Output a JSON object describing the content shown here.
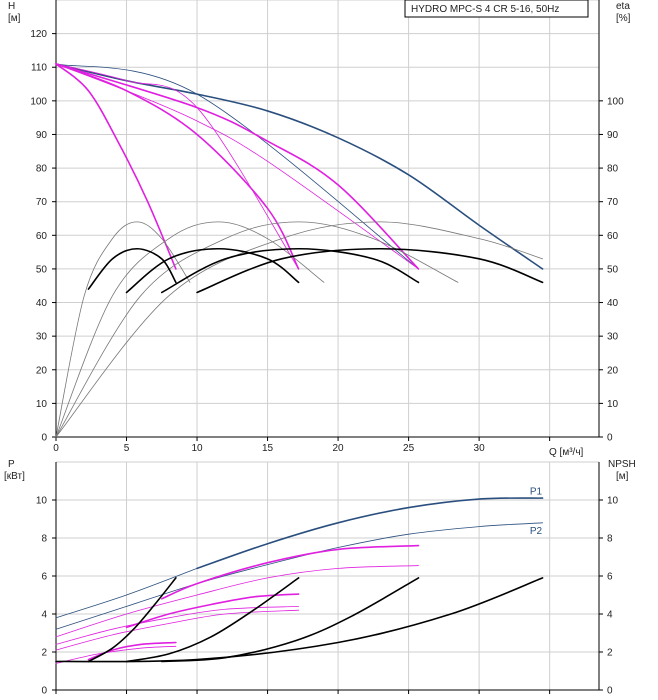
{
  "chart_data": [
    {
      "type": "line",
      "title": "HYDRO MPC-S 4 CR 5-16, 50Hz",
      "ylabel": "H",
      "yunit": "[м]",
      "ylabel_right": "eta",
      "yunit_right": "[%]",
      "xlabel": "Q [м³/ч]",
      "xlim": [
        0,
        38.5
      ],
      "ylim": [
        0,
        130
      ],
      "ylim_right": [
        0,
        130
      ],
      "x_ticks": [
        0,
        5,
        10,
        15,
        20,
        25,
        30
      ],
      "y_ticks": [
        0,
        10,
        20,
        30,
        40,
        50,
        60,
        70,
        80,
        90,
        100,
        110,
        120
      ],
      "y_ticks_right": [
        0,
        10,
        20,
        30,
        40,
        50,
        60,
        70,
        80,
        90,
        100
      ],
      "grid": true,
      "colors": {
        "head_max": "#2a4f7e",
        "head_reduced": "#e020e0",
        "eff": "#000000",
        "eff_thin": "#777777"
      },
      "series": [
        {
          "role": "head-max-4pumps",
          "color": "#2a4f7e",
          "width": 1.6,
          "x": [
            0,
            5,
            10,
            15,
            20,
            25,
            30,
            34.5
          ],
          "y": [
            111,
            106,
            102,
            97,
            89,
            78,
            63,
            50
          ]
        },
        {
          "role": "head-max-thin",
          "color": "#2a4f7e",
          "width": 0.8,
          "x": [
            0,
            10,
            25.7
          ],
          "y": [
            111,
            102,
            50
          ]
        },
        {
          "role": "head-reduced-1",
          "color": "#e020e0",
          "width": 1.6,
          "x": [
            0,
            2.3,
            4.5,
            6.5,
            8.5
          ],
          "y": [
            111,
            103,
            87,
            70,
            50
          ]
        },
        {
          "role": "head-reduced-2",
          "color": "#e020e0",
          "width": 1.6,
          "x": [
            0,
            5,
            10,
            15,
            17.2
          ],
          "y": [
            111,
            103,
            90,
            68,
            50
          ]
        },
        {
          "role": "head-reduced-3",
          "color": "#e020e0",
          "width": 1.6,
          "x": [
            0,
            10,
            15,
            20,
            25.7
          ],
          "y": [
            111,
            98,
            88,
            75,
            50
          ]
        },
        {
          "role": "head-reduced-thin-1",
          "color": "#e020e0",
          "width": 0.8,
          "x": [
            0,
            5,
            10,
            17.2
          ],
          "y": [
            111,
            106,
            98,
            50
          ]
        },
        {
          "role": "head-reduced-thin-2",
          "color": "#e020e0",
          "width": 0.8,
          "x": [
            0,
            5,
            10,
            15,
            25.7
          ],
          "y": [
            111,
            103,
            94,
            82,
            50
          ]
        },
        {
          "role": "eta-1",
          "color": "#777777",
          "width": 0.8,
          "x": [
            0,
            2,
            4,
            5.75,
            7.5,
            9.5
          ],
          "y": [
            0,
            42,
            59,
            64,
            59,
            46
          ]
        },
        {
          "role": "eta-2",
          "color": "#777777",
          "width": 0.8,
          "x": [
            0,
            4,
            8,
            11.5,
            15,
            19
          ],
          "y": [
            0,
            42,
            59,
            64,
            59,
            46
          ]
        },
        {
          "role": "eta-3",
          "color": "#777777",
          "width": 0.8,
          "x": [
            0,
            6,
            12,
            17.2,
            22.5,
            28.5
          ],
          "y": [
            0,
            42,
            59,
            64,
            59,
            46
          ]
        },
        {
          "role": "eta-4",
          "color": "#777777",
          "width": 0.8,
          "x": [
            0,
            8,
            16,
            23,
            30,
            34.5
          ],
          "y": [
            0,
            42,
            59,
            64,
            59,
            53
          ]
        },
        {
          "role": "eta-op-1",
          "color": "#000000",
          "width": 1.6,
          "x": [
            2.3,
            4,
            5.75,
            7.5,
            8.5
          ],
          "y": [
            44,
            53,
            56,
            53,
            46
          ]
        },
        {
          "role": "eta-op-2",
          "color": "#000000",
          "width": 1.6,
          "x": [
            5,
            8,
            11.5,
            15,
            17.2
          ],
          "y": [
            43,
            53,
            56,
            53,
            46
          ]
        },
        {
          "role": "eta-op-3",
          "color": "#000000",
          "width": 1.6,
          "x": [
            7.5,
            12,
            17.2,
            22.5,
            25.7
          ],
          "y": [
            43,
            53,
            56,
            53,
            46
          ]
        },
        {
          "role": "eta-op-4",
          "color": "#000000",
          "width": 1.6,
          "x": [
            10,
            16,
            23,
            30,
            34.5
          ],
          "y": [
            43,
            53,
            56,
            53,
            46
          ]
        }
      ]
    },
    {
      "type": "line",
      "ylabel": "P",
      "yunit": "[кВт]",
      "ylabel_right": "NPSH",
      "yunit_right": "[м]",
      "xlim": [
        0,
        38.5
      ],
      "ylim": [
        0,
        12
      ],
      "ylim_right": [
        0,
        12
      ],
      "x_ticks": [
        0,
        5,
        10,
        15,
        20,
        25,
        30
      ],
      "y_ticks": [
        0,
        2,
        4,
        6,
        8,
        10
      ],
      "y_ticks_right": [
        0,
        2,
        4,
        6,
        8,
        10
      ],
      "grid": true,
      "series_labels": [
        {
          "text": "P1",
          "x": 33.6,
          "y": 10.3,
          "color": "#2a4f7e"
        },
        {
          "text": "P2",
          "x": 33.6,
          "y": 8.2,
          "color": "#2a4f7e"
        }
      ],
      "series": [
        {
          "role": "p1-max",
          "color": "#2a4f7e",
          "width": 1.6,
          "x": [
            10,
            15,
            20,
            25,
            30,
            34.5
          ],
          "y": [
            6.4,
            7.7,
            8.8,
            9.6,
            10.05,
            10.1
          ]
        },
        {
          "role": "p1-max-thin",
          "color": "#2a4f7e",
          "width": 0.8,
          "x": [
            0,
            5,
            10
          ],
          "y": [
            3.8,
            5.0,
            6.4
          ]
        },
        {
          "role": "p2-max",
          "color": "#2a4f7e",
          "width": 0.8,
          "x": [
            0,
            5,
            10,
            15,
            20,
            25,
            30,
            34.5
          ],
          "y": [
            3.2,
            4.4,
            5.6,
            6.6,
            7.5,
            8.2,
            8.6,
            8.8
          ]
        },
        {
          "role": "p1-reduced-3",
          "color": "#e020e0",
          "width": 1.6,
          "x": [
            7.5,
            10,
            15,
            20,
            25.7
          ],
          "y": [
            4.8,
            5.6,
            6.7,
            7.4,
            7.6
          ]
        },
        {
          "role": "p1-reduced-3-thin",
          "color": "#e020e0",
          "width": 0.8,
          "x": [
            0,
            5,
            10,
            15,
            20,
            25.7
          ],
          "y": [
            2.8,
            4.0,
            5.0,
            5.9,
            6.4,
            6.55
          ]
        },
        {
          "role": "p1-reduced-2",
          "color": "#e020e0",
          "width": 1.6,
          "x": [
            5,
            8,
            11,
            14,
            17.2
          ],
          "y": [
            3.3,
            4.0,
            4.5,
            4.9,
            5.05
          ]
        },
        {
          "role": "p1-reduced-2-thin",
          "color": "#e020e0",
          "width": 0.8,
          "x": [
            0,
            4,
            8,
            12,
            17.2
          ],
          "y": [
            2.4,
            3.2,
            3.8,
            4.25,
            4.4
          ]
        },
        {
          "role": "p1-reduced-thin-a",
          "color": "#e020e0",
          "width": 0.8,
          "x": [
            0,
            4,
            8,
            12,
            17.2
          ],
          "y": [
            2.1,
            2.9,
            3.5,
            4.0,
            4.2
          ]
        },
        {
          "role": "p1-reduced-1",
          "color": "#e020e0",
          "width": 1.6,
          "x": [
            2.3,
            4,
            6,
            8.5
          ],
          "y": [
            1.6,
            2.1,
            2.4,
            2.5
          ]
        },
        {
          "role": "p1-reduced-1-thin",
          "color": "#e020e0",
          "width": 0.8,
          "x": [
            0,
            3,
            6,
            8.5
          ],
          "y": [
            1.4,
            1.9,
            2.2,
            2.3
          ]
        },
        {
          "role": "npsh-1",
          "color": "#000000",
          "width": 1.6,
          "x": [
            2.3,
            4,
            5.5,
            7,
            8.5
          ],
          "y": [
            1.5,
            2.2,
            3.2,
            4.5,
            5.9
          ]
        },
        {
          "role": "npsh-2",
          "color": "#000000",
          "width": 1.6,
          "x": [
            5,
            8,
            11,
            14,
            17.2
          ],
          "y": [
            1.5,
            1.9,
            2.8,
            4.2,
            5.9
          ]
        },
        {
          "role": "npsh-3",
          "color": "#000000",
          "width": 1.6,
          "x": [
            7.5,
            12,
            17,
            21,
            25.7
          ],
          "y": [
            1.5,
            1.7,
            2.6,
            3.9,
            5.9
          ]
        },
        {
          "role": "npsh-4",
          "color": "#000000",
          "width": 1.6,
          "x": [
            0,
            10,
            20,
            28,
            34.5
          ],
          "y": [
            1.5,
            1.6,
            2.5,
            4.0,
            5.9
          ]
        }
      ]
    }
  ]
}
